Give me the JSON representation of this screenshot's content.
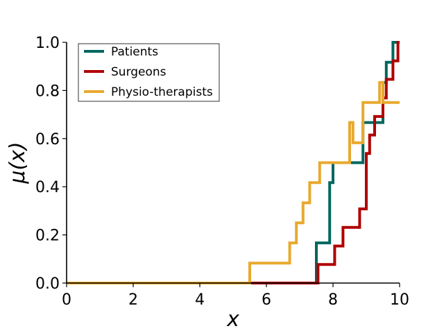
{
  "chart_data": {
    "type": "line",
    "title": "",
    "xlabel": "x",
    "ylabel": "μ(x)",
    "xlim": [
      0,
      10
    ],
    "ylim": [
      0,
      1
    ],
    "xticks": [
      0,
      2,
      4,
      6,
      8,
      10
    ],
    "yticks": [
      0.0,
      0.2,
      0.4,
      0.6,
      0.8,
      1.0
    ],
    "xtick_labels": [
      "0",
      "2",
      "4",
      "6",
      "8",
      "10"
    ],
    "ytick_labels": [
      "0.0",
      "0.2",
      "0.4",
      "0.6",
      "0.8",
      "1.0"
    ],
    "grid": false,
    "legend_position": "top-left",
    "series": [
      {
        "name": "Patients",
        "color": "#00675f",
        "x": [
          0,
          7.5,
          7.5,
          7.9,
          7.9,
          8.0,
          8.0,
          8.9,
          8.9,
          9.0,
          9.0,
          9.5,
          9.5,
          9.6,
          9.6,
          9.8,
          9.8,
          10.0
        ],
        "y": [
          0,
          0,
          0.167,
          0.167,
          0.417,
          0.417,
          0.5,
          0.5,
          0.667,
          0.667,
          0.667,
          0.667,
          0.833,
          0.833,
          0.917,
          0.917,
          1.0,
          1.0
        ]
      },
      {
        "name": "Surgeons",
        "color": "#b00000",
        "x": [
          0,
          7.55,
          7.55,
          8.05,
          8.05,
          8.3,
          8.3,
          8.8,
          8.8,
          9.0,
          9.0,
          9.1,
          9.1,
          9.25,
          9.25,
          9.45,
          9.45,
          9.5,
          9.5,
          9.6,
          9.6,
          9.8,
          9.8,
          9.95,
          9.95,
          10.0
        ],
        "y": [
          0,
          0,
          0.077,
          0.077,
          0.154,
          0.154,
          0.231,
          0.231,
          0.308,
          0.308,
          0.538,
          0.538,
          0.615,
          0.615,
          0.692,
          0.692,
          0.692,
          0.692,
          0.769,
          0.769,
          0.846,
          0.846,
          0.923,
          0.923,
          1.0,
          1.0
        ]
      },
      {
        "name": "Physio-therapists",
        "color": "#e8a92e",
        "x": [
          0,
          5.5,
          5.5,
          6.7,
          6.7,
          6.9,
          6.9,
          7.1,
          7.1,
          7.3,
          7.3,
          7.6,
          7.6,
          7.9,
          7.9,
          8.5,
          8.5,
          8.6,
          8.6,
          8.9,
          8.9,
          9.4,
          9.4,
          9.5,
          9.5,
          10.0
        ],
        "y": [
          0,
          0,
          0.083,
          0.083,
          0.167,
          0.167,
          0.25,
          0.25,
          0.333,
          0.333,
          0.417,
          0.417,
          0.5,
          0.5,
          0.5,
          0.5,
          0.667,
          0.667,
          0.583,
          0.583,
          0.75,
          0.75,
          0.833,
          0.833,
          0.75,
          0.75
        ]
      }
    ]
  }
}
